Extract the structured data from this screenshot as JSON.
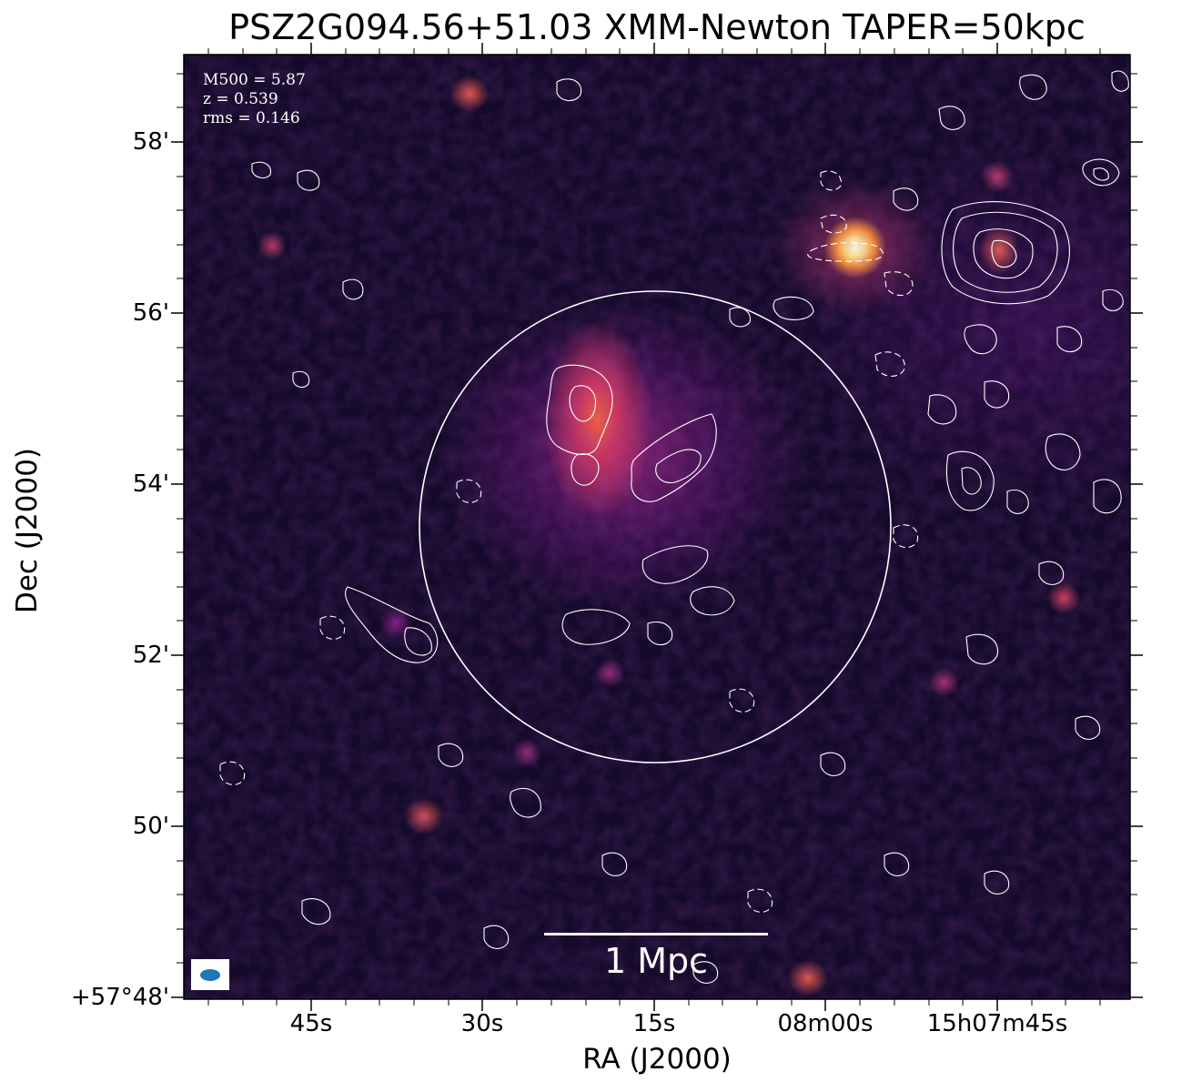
{
  "title": "PSZ2G094.56+51.03 XMM-Newton TAPER=50kpc",
  "annotation": {
    "line1": "M500 = 5.87",
    "line2": "z = 0.539",
    "line3": "rms = 0.146"
  },
  "scale_bar": {
    "label": "1 Mpc"
  },
  "axes": {
    "x_title": "RA (J2000)",
    "y_title": "Dec (J2000)",
    "x_ticks": [
      "45s",
      "30s",
      "15s",
      "08m00s",
      "15h07m45s"
    ],
    "y_ticks": [
      "58'",
      "56'",
      "54'",
      "52'",
      "50'",
      "+57°48'"
    ]
  },
  "colors": {
    "contour": "#ffffff",
    "beam": "#1f77b4",
    "background_dark": "#140a2a"
  }
}
